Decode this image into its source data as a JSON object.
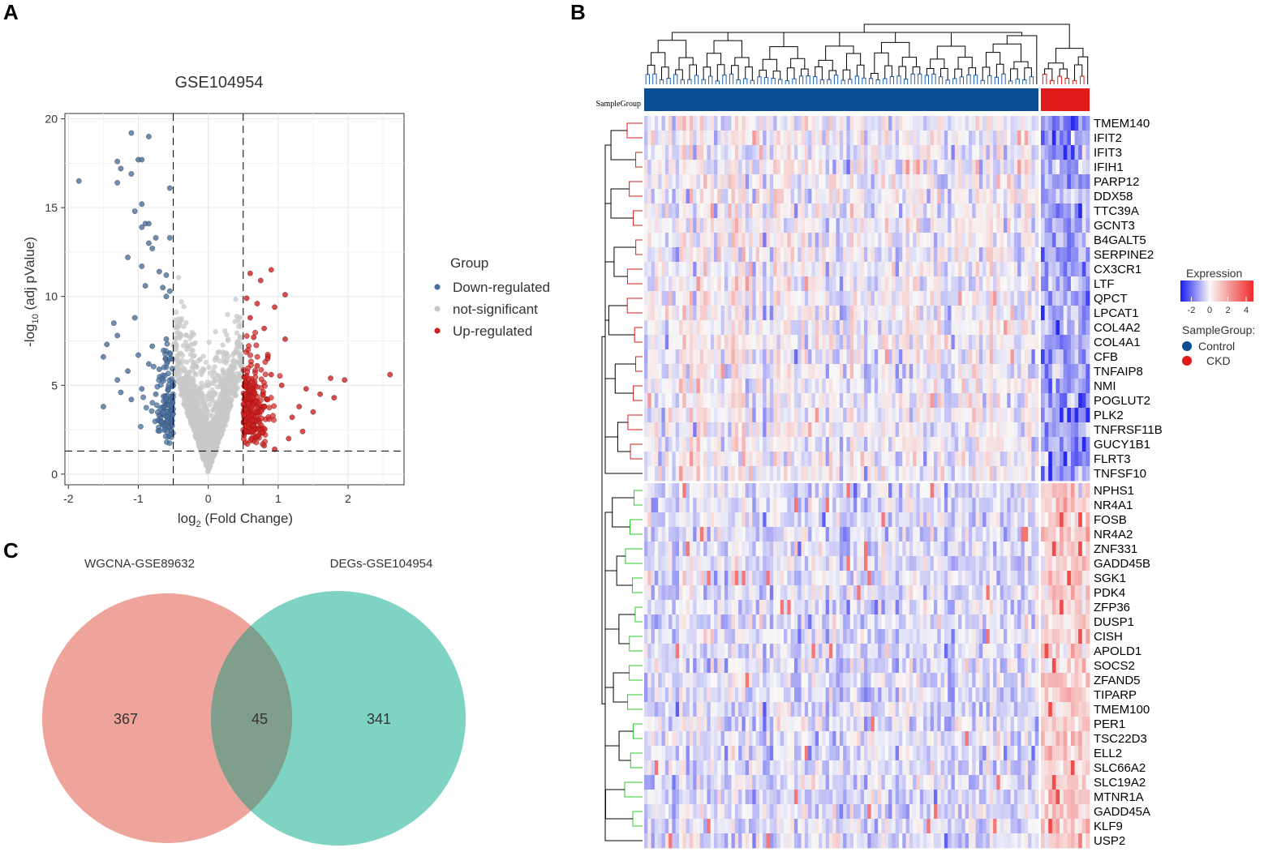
{
  "panels": {
    "a": "A",
    "b": "B",
    "c": "C"
  },
  "chart_data": [
    {
      "id": "volcano",
      "type": "scatter",
      "title": "GSE104954",
      "xlabel": "log₂ (Fold Change)",
      "xlabel_parts": {
        "pre": "log",
        "sub": "2",
        "post": " (Fold Change)"
      },
      "ylabel": "-log₁₀ (adj pValue)",
      "ylabel_parts": {
        "pre": "-log",
        "sub": "10",
        "post": " (adj pValue)"
      },
      "xlim": [
        -2.05,
        2.8
      ],
      "ylim": [
        -0.6,
        20.3
      ],
      "xticks": [
        "-2",
        "-1",
        "0",
        "1",
        "2"
      ],
      "yticks": [
        "0",
        "5",
        "10",
        "15",
        "20"
      ],
      "thresholds": {
        "logfc": 0.5,
        "pvalue": 1.3
      },
      "legend": {
        "title": "Group",
        "position": "right",
        "items": [
          {
            "label": "Down-regulated",
            "color": "#4a6f9c"
          },
          {
            "label": "not-significant",
            "color": "#c8c8c8"
          },
          {
            "label": "Up-regulated",
            "color": "#d11f1f"
          }
        ]
      },
      "series": [
        {
          "name": "Down-regulated",
          "color": "#4a6f9c",
          "points": [
            [
              -1.85,
              16.5
            ],
            [
              -1.1,
              19.2
            ],
            [
              -0.85,
              19.0
            ],
            [
              -1.3,
              17.6
            ],
            [
              -1.0,
              17.7
            ],
            [
              -0.95,
              17.7
            ],
            [
              -1.25,
              17.2
            ],
            [
              -1.1,
              16.9
            ],
            [
              -1.3,
              16.4
            ],
            [
              -0.55,
              16.1
            ],
            [
              -0.95,
              15.2
            ],
            [
              -1.05,
              14.8
            ],
            [
              -0.9,
              14.1
            ],
            [
              -0.85,
              14.1
            ],
            [
              -0.95,
              13.9
            ],
            [
              -0.75,
              13.3
            ],
            [
              -0.55,
              13.3
            ],
            [
              -0.85,
              13.0
            ],
            [
              -0.8,
              12.7
            ],
            [
              -1.15,
              12.2
            ],
            [
              -0.95,
              11.7
            ],
            [
              -0.7,
              11.4
            ],
            [
              -0.6,
              11.2
            ],
            [
              -0.9,
              10.6
            ],
            [
              -0.65,
              10.5
            ],
            [
              -0.6,
              10.0
            ],
            [
              -0.55,
              10.3
            ],
            [
              -1.35,
              8.5
            ],
            [
              -1.05,
              8.8
            ],
            [
              -1.3,
              7.8
            ],
            [
              -0.8,
              7.2
            ],
            [
              -1.45,
              7.3
            ],
            [
              -0.6,
              7.6
            ],
            [
              -1.5,
              6.6
            ],
            [
              -1.0,
              6.7
            ],
            [
              -0.85,
              6.2
            ],
            [
              -1.15,
              5.8
            ],
            [
              -1.3,
              5.3
            ],
            [
              -0.7,
              5.9
            ],
            [
              -1.5,
              3.8
            ],
            [
              -1.25,
              4.6
            ],
            [
              -1.1,
              4.2
            ],
            [
              -0.55,
              6.5
            ],
            [
              -0.95,
              4.8
            ],
            [
              -0.75,
              4.5
            ]
          ]
        },
        {
          "name": "Up-regulated",
          "color": "#d11f1f",
          "points": [
            [
              2.6,
              5.6
            ],
            [
              1.75,
              5.4
            ],
            [
              1.95,
              5.3
            ],
            [
              1.4,
              4.8
            ],
            [
              1.6,
              4.5
            ],
            [
              1.8,
              4.3
            ],
            [
              1.3,
              3.8
            ],
            [
              1.5,
              3.5
            ],
            [
              0.9,
              11.5
            ],
            [
              1.1,
              10.1
            ],
            [
              0.75,
              10.9
            ],
            [
              0.6,
              11.3
            ],
            [
              0.7,
              9.6
            ],
            [
              0.95,
              9.4
            ],
            [
              0.6,
              8.8
            ],
            [
              0.8,
              8.2
            ],
            [
              1.1,
              7.6
            ],
            [
              0.65,
              7.7
            ],
            [
              0.85,
              6.5
            ],
            [
              0.7,
              6.1
            ],
            [
              1.05,
              5.0
            ],
            [
              0.9,
              5.6
            ],
            [
              0.55,
              9.9
            ],
            [
              1.2,
              3.2
            ],
            [
              1.35,
              2.4
            ],
            [
              0.95,
              1.4
            ],
            [
              1.15,
              2.0
            ],
            [
              0.8,
              1.6
            ]
          ]
        }
      ]
    },
    {
      "id": "heatmap",
      "type": "heatmap",
      "annotation_label": "SampleGroup",
      "groups": [
        {
          "name": "Control",
          "color": "#0a4e97",
          "count": 113
        },
        {
          "name": "CKD",
          "color": "#e11b1b",
          "count": 13
        }
      ],
      "up_genes": [
        "TMEM140",
        "IFIT2",
        "IFIT3",
        "IFIH1",
        "PARP12",
        "DDX58",
        "TTC39A",
        "GCNT3",
        "B4GALT5",
        "SERPINE2",
        "CX3CR1",
        "LTF",
        "QPCT",
        "LPCAT1",
        "COL4A2",
        "COL4A1",
        "CFB",
        "TNFAIP8",
        "NMI",
        "POGLUT2",
        "PLK2",
        "TNFRSF11B",
        "GUCY1B1",
        "FLRT3",
        "TNFSF10"
      ],
      "down_genes": [
        "NPHS1",
        "NR4A1",
        "FOSB",
        "NR4A2",
        "ZNF331",
        "GADD45B",
        "SGK1",
        "PDK4",
        "ZFP36",
        "DUSP1",
        "CISH",
        "APOLD1",
        "SOCS2",
        "ZFAND5",
        "TIPARP",
        "TMEM100",
        "PER1",
        "TSC22D3",
        "ELL2",
        "SLC66A2",
        "SLC19A2",
        "MTNR1A",
        "GADD45A",
        "KLF9",
        "USP2"
      ],
      "legend": {
        "title": "Expression",
        "ticks": [
          "-2",
          "0",
          "2",
          "4"
        ],
        "range": [
          -3.2,
          4.8
        ],
        "group_title": "SampleGroup:",
        "group_items": [
          "Control",
          "CKD"
        ]
      },
      "colors": {
        "low": "#1c1cf0",
        "mid": "#f8f8f8",
        "high": "#f02a2a",
        "dendro_up": "#e21c1c",
        "dendro_down": "#2ec82e",
        "dendro_control": "#1f5fb0",
        "dendro_ckd": "#e21c1c"
      }
    },
    {
      "id": "venn",
      "type": "venn",
      "sets": [
        {
          "name": "WGCNA-GSE89632",
          "color": "#ea8c82",
          "label_color": "#e8634f",
          "only": 367
        },
        {
          "name": "DEGs-GSE104954",
          "color": "#5fc8b4",
          "label_color": "#1f9b80",
          "only": 341
        }
      ],
      "intersection": 45,
      "overlap_color": "#7f9e8c"
    }
  ]
}
